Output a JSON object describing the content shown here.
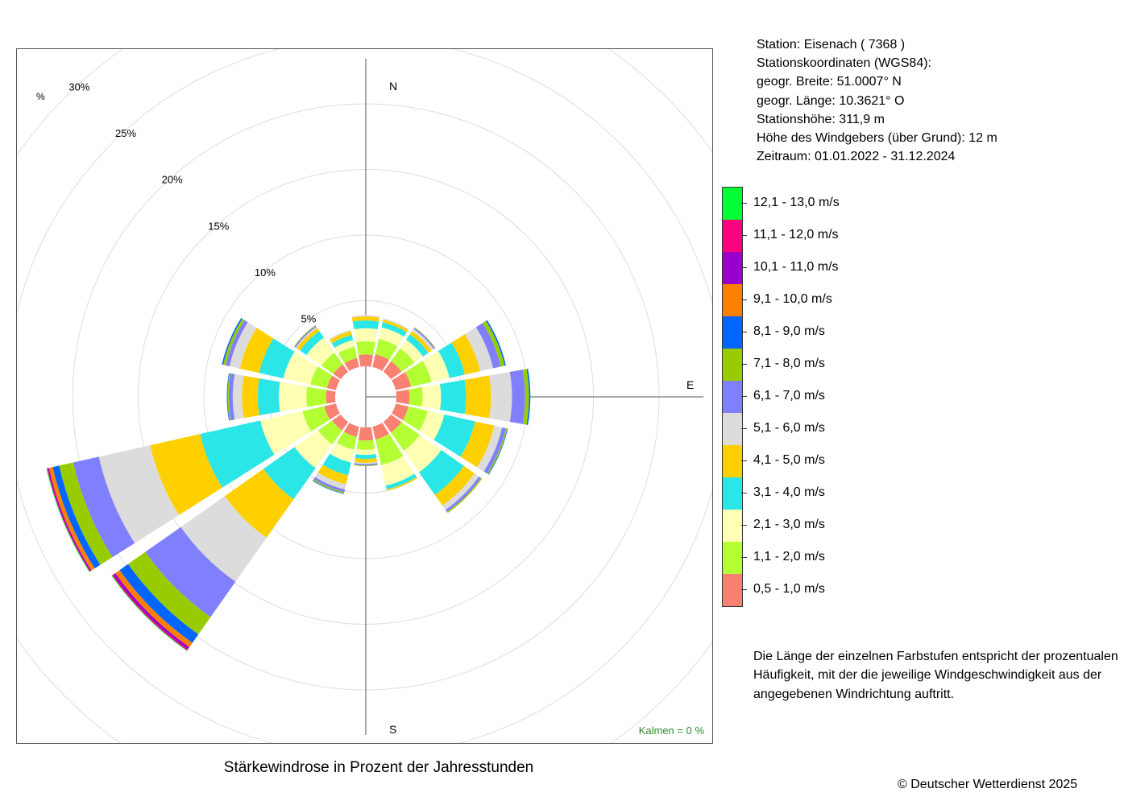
{
  "chart_data": {
    "type": "wind-rose",
    "title": "Stärkewindrose in Prozent der Jahresstunden",
    "radial_unit": "%",
    "radial_ticks": [
      5,
      10,
      15,
      20,
      25,
      30
    ],
    "radial_tick_labels": [
      "5%",
      "10%",
      "15%",
      "20%",
      "25%",
      "30%"
    ],
    "directions": [
      "N",
      "NNE",
      "NE",
      "ENE",
      "E",
      "ESE",
      "SE",
      "SSE",
      "S",
      "SSW",
      "SW",
      "WSW",
      "W",
      "WNW",
      "NW",
      "NNW"
    ],
    "direction_labels": {
      "N": "N",
      "E": "E",
      "S": "S"
    },
    "calm_label": "Kalmen  =  0 %",
    "speed_classes": [
      {
        "label": "0,5 - 1,0 m/s",
        "color": "#fa8072"
      },
      {
        "label": "1,1 - 2,0 m/s",
        "color": "#b3ff33"
      },
      {
        "label": "2,1 - 3,0 m/s",
        "color": "#ffffb3"
      },
      {
        "label": "3,1 - 4,0 m/s",
        "color": "#2ae6e6"
      },
      {
        "label": "4,1 - 5,0 m/s",
        "color": "#ffd000"
      },
      {
        "label": "5,1 - 6,0 m/s",
        "color": "#dcdcdc"
      },
      {
        "label": "6,1 - 7,0 m/s",
        "color": "#8080ff"
      },
      {
        "label": "7,1 - 8,0 m/s",
        "color": "#99cc00"
      },
      {
        "label": "8,1 - 9,0 m/s",
        "color": "#0066ff"
      },
      {
        "label": "9,1 - 10,0 m/s",
        "color": "#ff8000"
      },
      {
        "label": "10,1 - 11,0 m/s",
        "color": "#9900cc"
      },
      {
        "label": "11,1 - 12,0 m/s",
        "color": "#ff0080"
      },
      {
        "label": "12,1 - 13,0 m/s",
        "color": "#00ff33"
      }
    ],
    "series": [
      {
        "direction": "N",
        "values": [
          0.9,
          1.0,
          1.0,
          0.6,
          0.3,
          0.1,
          0,
          0,
          0,
          0,
          0,
          0,
          0
        ]
      },
      {
        "direction": "NNE",
        "values": [
          1.0,
          1.2,
          0.9,
          0.4,
          0.2,
          0.1,
          0,
          0,
          0,
          0,
          0,
          0,
          0
        ]
      },
      {
        "direction": "NE",
        "values": [
          1.0,
          1.2,
          0.8,
          0.5,
          0.3,
          0.2,
          0.1,
          0.05,
          0,
          0,
          0,
          0,
          0
        ]
      },
      {
        "direction": "ENE",
        "values": [
          1.2,
          1.6,
          1.4,
          1.2,
          1.2,
          1.0,
          0.6,
          0.3,
          0.1,
          0,
          0,
          0,
          0
        ]
      },
      {
        "direction": "E",
        "values": [
          1.0,
          1.0,
          1.4,
          1.9,
          1.9,
          1.6,
          1.0,
          0.3,
          0.1,
          0,
          0,
          0,
          0
        ]
      },
      {
        "direction": "ESE",
        "values": [
          1.0,
          1.5,
          1.3,
          2.4,
          1.5,
          0.6,
          0.3,
          0.1,
          0.05,
          0,
          0,
          0,
          0
        ]
      },
      {
        "direction": "SE",
        "values": [
          1.0,
          1.7,
          2.0,
          2.1,
          1.0,
          0.4,
          0.2,
          0.1,
          0,
          0,
          0,
          0,
          0
        ]
      },
      {
        "direction": "SSE",
        "values": [
          1.0,
          2.0,
          1.6,
          0.3,
          0.1,
          0,
          0,
          0,
          0,
          0,
          0,
          0,
          0
        ]
      },
      {
        "direction": "S",
        "values": [
          1.0,
          0.7,
          0.4,
          0.3,
          0.3,
          0.1,
          0.1,
          0.05,
          0,
          0,
          0,
          0,
          0
        ]
      },
      {
        "direction": "SSW",
        "values": [
          0.8,
          1.0,
          1.0,
          1.0,
          0.7,
          0.4,
          0.2,
          0.1,
          0.05,
          0,
          0,
          0,
          0
        ]
      },
      {
        "direction": "SW",
        "values": [
          0.8,
          1.3,
          2.2,
          2.9,
          3.6,
          4.1,
          3.3,
          1.6,
          0.8,
          0.4,
          0.2,
          0.1,
          0.05
        ]
      },
      {
        "direction": "WSW",
        "values": [
          0.9,
          1.7,
          3.3,
          4.7,
          3.9,
          4.0,
          2.0,
          1.1,
          0.5,
          0.3,
          0.1,
          0.05,
          0.05
        ]
      },
      {
        "direction": "W",
        "values": [
          0.7,
          1.5,
          2.1,
          1.6,
          1.2,
          0.7,
          0.3,
          0.1,
          0.05,
          0,
          0,
          0,
          0
        ]
      },
      {
        "direction": "WNW",
        "values": [
          0.7,
          1.3,
          2.1,
          1.9,
          1.5,
          0.8,
          0.3,
          0.2,
          0.1,
          0,
          0,
          0,
          0
        ]
      },
      {
        "direction": "NW",
        "values": [
          0.7,
          1.1,
          1.4,
          0.6,
          0.3,
          0.1,
          0.1,
          0.05,
          0,
          0,
          0,
          0,
          0
        ]
      },
      {
        "direction": "NNW",
        "values": [
          0.7,
          0.9,
          0.5,
          0.4,
          0.3,
          0.1,
          0,
          0,
          0,
          0,
          0,
          0,
          0
        ]
      }
    ]
  },
  "station": {
    "line_station": "Station:  Eisenach  ( 7368 )",
    "line_coords_title": "Stationskoordinaten (WGS84):",
    "line_lat": "geogr. Breite: 51.0007° N",
    "line_lon": "geogr. Länge: 10.3621° O",
    "line_height": "Stationshöhe: 311,9 m",
    "line_sensor": "Höhe des Windgebers (über Grund): 12 m",
    "line_period": "Zeitraum: 01.01.2022 - 31.12.2024"
  },
  "note": "Die Länge der einzelnen Farbstufen entspricht der prozentualen Häufigkeit, mit der die jeweilige Windgeschwindigkeit aus der angegebenen Windrichtung auftritt.",
  "copyright": "© Deutscher Wetterdienst  2025"
}
